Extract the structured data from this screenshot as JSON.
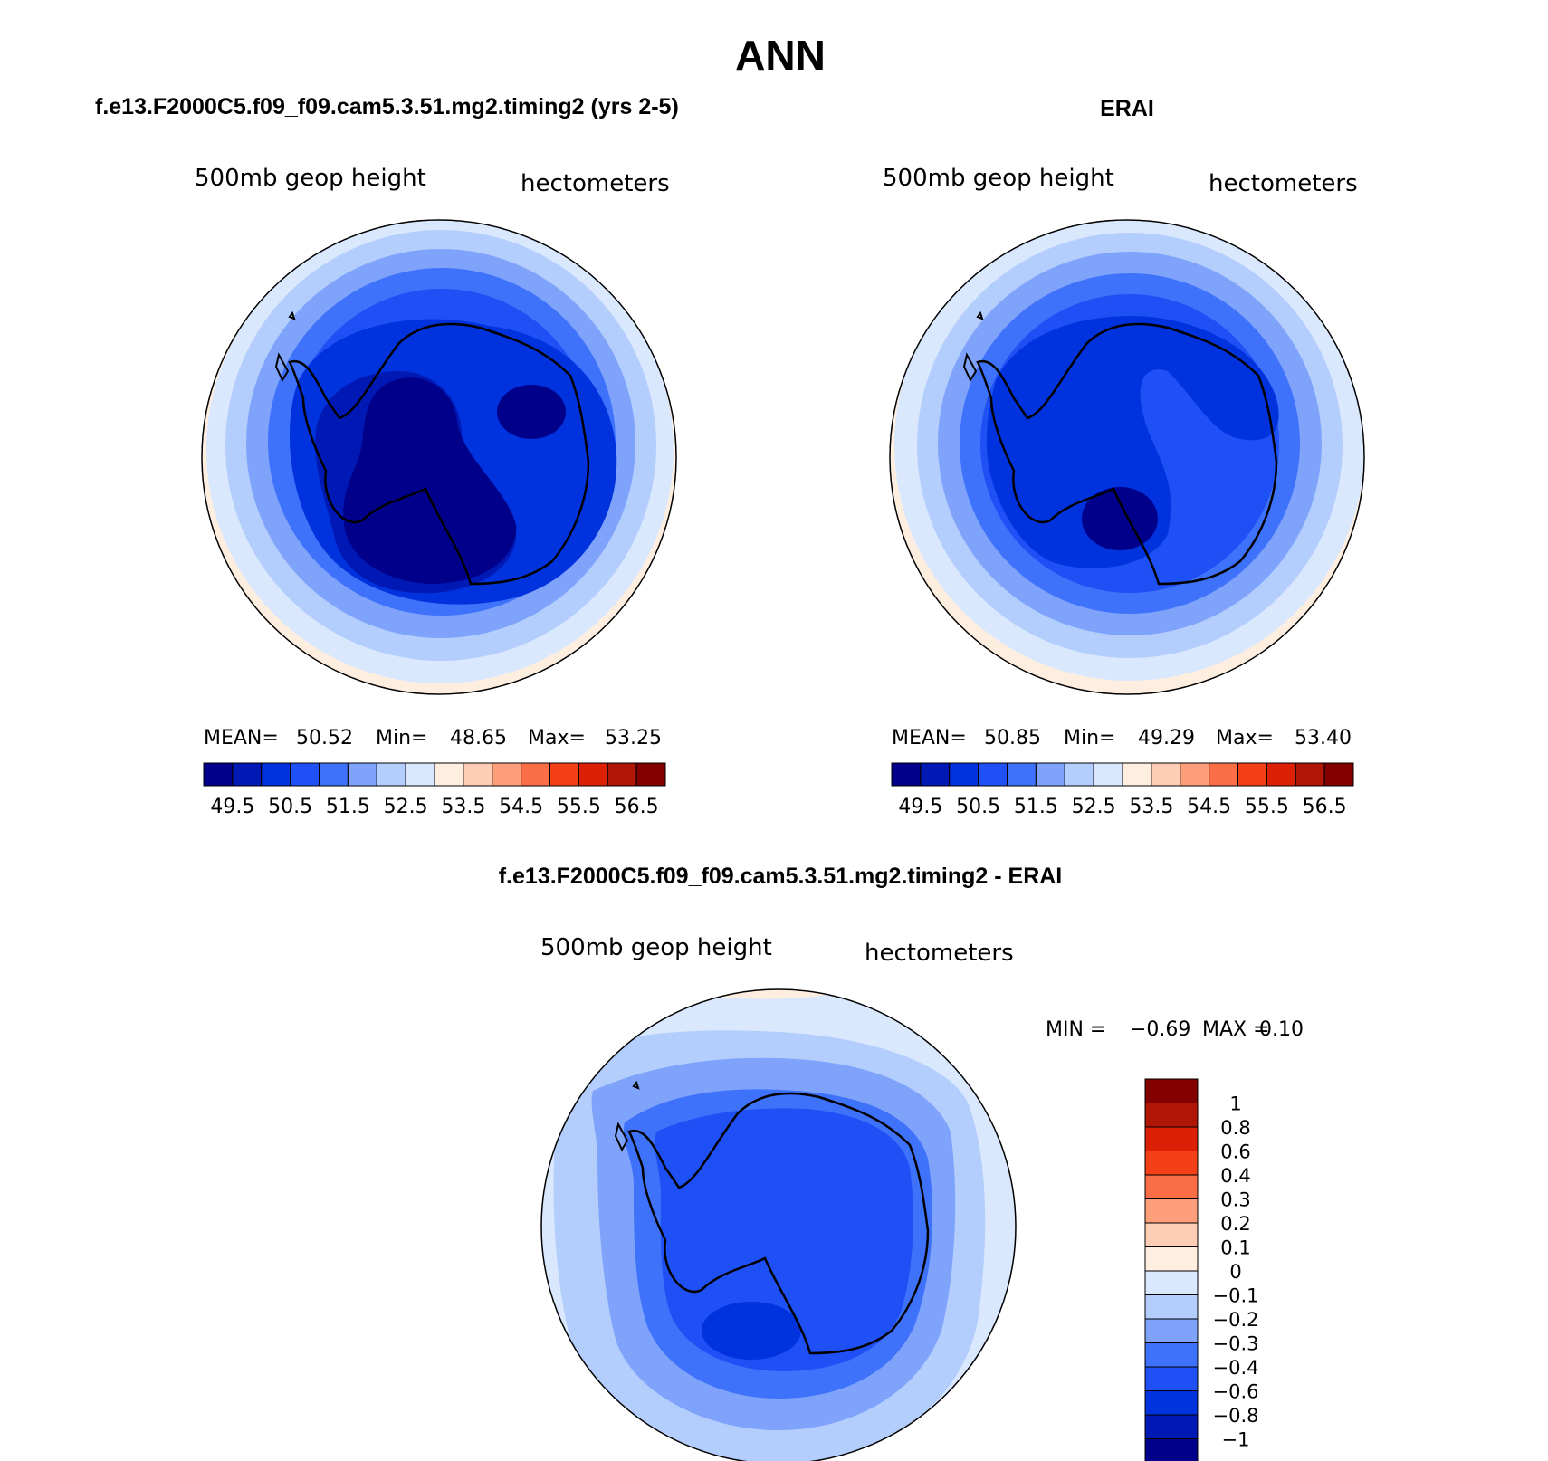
{
  "page_title": "ANN",
  "panels": [
    {
      "id": "model",
      "title": "f.e13.F2000C5.f09_f09.cam5.3.51.mg2.timing2 (yrs 2-5)",
      "variable": "500mb geop height",
      "units": "hectometers",
      "stats": {
        "mean_label": "MEAN=",
        "mean": "50.52",
        "min_label": "Min=",
        "min": "48.65",
        "max_label": "Max=",
        "max": "53.25"
      },
      "colorbar_labels": [
        "49.5",
        "50.5",
        "51.5",
        "52.5",
        "53.5",
        "54.5",
        "55.5",
        "56.5"
      ]
    },
    {
      "id": "obs",
      "title": "ERAI",
      "variable": "500mb geop height",
      "units": "hectometers",
      "stats": {
        "mean_label": "MEAN=",
        "mean": "50.85",
        "min_label": "Min=",
        "min": "49.29",
        "max_label": "Max=",
        "max": "53.40"
      },
      "colorbar_labels": [
        "49.5",
        "50.5",
        "51.5",
        "52.5",
        "53.5",
        "54.5",
        "55.5",
        "56.5"
      ]
    },
    {
      "id": "diff",
      "title": "f.e13.F2000C5.f09_f09.cam5.3.51.mg2.timing2 - ERAI",
      "variable": "500mb geop height",
      "units": "hectometers",
      "stats": {
        "min_label": "MIN =",
        "min": "−0.69",
        "max_label": "MAX =",
        "max": "0.10"
      },
      "colorbar_labels": [
        "1",
        "0.8",
        "0.6",
        "0.4",
        "0.3",
        "0.2",
        "0.1",
        "0",
        "−0.1",
        "−0.2",
        "−0.3",
        "−0.4",
        "−0.6",
        "−0.8",
        "−1"
      ]
    }
  ],
  "colors": {
    "abs_scale": [
      "#00008a",
      "#0019b5",
      "#0033dd",
      "#1e50f5",
      "#3f72fa",
      "#7fa3fb",
      "#b3cdfd",
      "#dae8fe",
      "#feeee0",
      "#fdcdb5",
      "#fc9f7a",
      "#fb6e46",
      "#f44016",
      "#db2006",
      "#b01605",
      "#820000"
    ],
    "diff_scale": [
      "#00008a",
      "#0019b5",
      "#0033dd",
      "#1e50f5",
      "#3f72fa",
      "#7fa3fb",
      "#b3cdfd",
      "#dae8fe",
      "#feeee0",
      "#fdcdb5",
      "#fc9f7a",
      "#fb6e46",
      "#f44016",
      "#db2006",
      "#b01605",
      "#820000"
    ]
  }
}
